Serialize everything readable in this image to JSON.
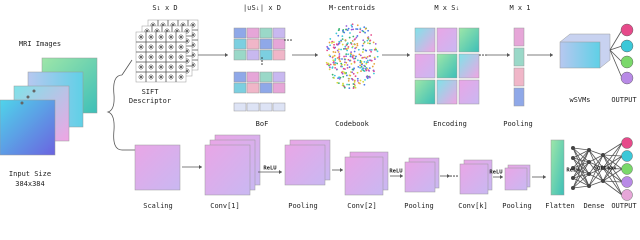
{
  "input": {
    "title": "MRI Images",
    "size_label": "Input Size",
    "size": "384x384"
  },
  "top_pipeline": {
    "dims": [
      "S₁ x D",
      "|∪Sᵢ| x D",
      "M-centroids",
      "M x Sᵢ",
      "M x 1"
    ],
    "stages": [
      "SIFT",
      "Descriptor",
      "BoF",
      "Codebook",
      "Encoding",
      "Pooling",
      "wSVMs",
      "OUTPUT"
    ]
  },
  "bottom_pipeline": {
    "stages": [
      "Scaling",
      "Conv[1]",
      "Pooling",
      "Conv[2]",
      "Pooling",
      "Conv[k]",
      "Pooling",
      "Flatten",
      "Dense",
      "OUTPUT"
    ],
    "activations": [
      "ReLU",
      "ReLU",
      "ReLU",
      "ReLU",
      "Softmax"
    ]
  }
}
